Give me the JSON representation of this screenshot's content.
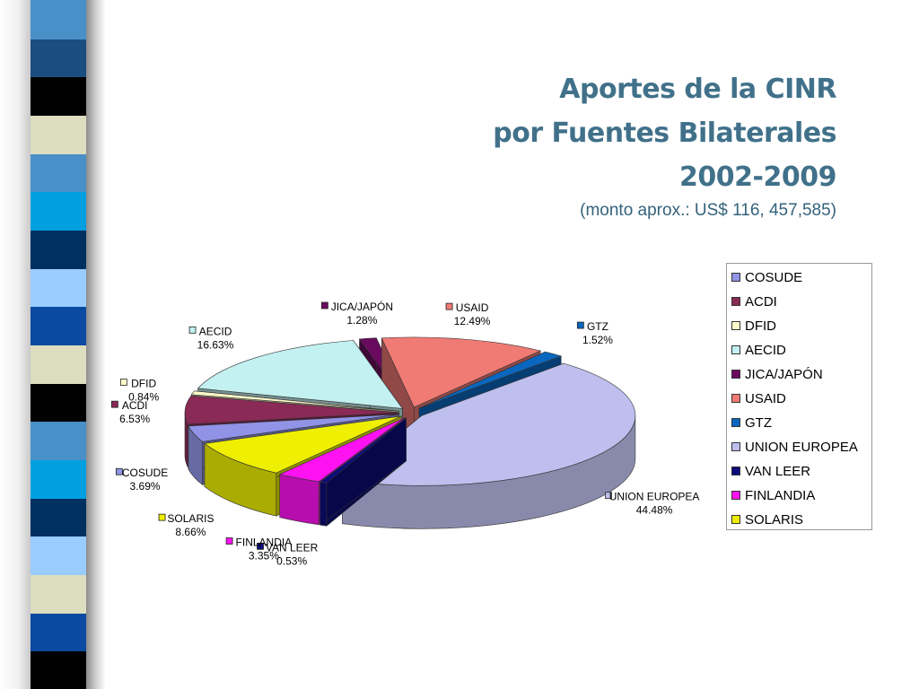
{
  "slide": {
    "title_lines": [
      "Aportes de la CINR",
      "por Fuentes Bilaterales",
      "2002-2009"
    ],
    "subtitle": "(monto aprox.:  US$ 116, 457,585)"
  },
  "chart_data": {
    "type": "pie",
    "style": "3d-exploded",
    "title": "",
    "legend_position": "right",
    "slices": [
      {
        "name": "COSUDE",
        "percent": 3.69,
        "label": "3.69%",
        "color": "#9093e6"
      },
      {
        "name": "ACDI",
        "percent": 6.53,
        "label": "6.53%",
        "color": "#8a2a56"
      },
      {
        "name": "DFID",
        "percent": 0.84,
        "label": "0.84%",
        "color": "#fffac9"
      },
      {
        "name": "AECID",
        "percent": 16.63,
        "label": "16.63%",
        "color": "#c3f0f0"
      },
      {
        "name": "JICA/JAPÓN",
        "percent": 1.28,
        "label": "1.28%",
        "color": "#6a0a5e"
      },
      {
        "name": "USAID",
        "percent": 12.49,
        "label": "12.49%",
        "color": "#f07a74"
      },
      {
        "name": "GTZ",
        "percent": 1.52,
        "label": "1.52%",
        "color": "#0a67bf"
      },
      {
        "name": "UNION EUROPEA",
        "percent": 44.48,
        "label": "44.48%",
        "color": "#bebfee"
      },
      {
        "name": "VAN LEER",
        "percent": 0.53,
        "label": "0.53%",
        "color": "#0c0c7a"
      },
      {
        "name": "FINLANDIA",
        "percent": 3.35,
        "label": "3.35%",
        "color": "#ff12f2"
      },
      {
        "name": "SOLARIS",
        "percent": 8.66,
        "label": "8.66%",
        "color": "#eeef02"
      }
    ]
  },
  "decor": {
    "stripes": [
      "#4a90c8",
      "#1a4d80",
      "#000000",
      "#ddddc0",
      "#4a90c8",
      "#00a0e0",
      "#003060",
      "#99ccff",
      "#0a4aa0",
      "#ddddc0",
      "#000000",
      "#4a90c8",
      "#00a0e0",
      "#003060",
      "#99ccff",
      "#ddddc0",
      "#0a4aa0",
      "#000000"
    ]
  }
}
